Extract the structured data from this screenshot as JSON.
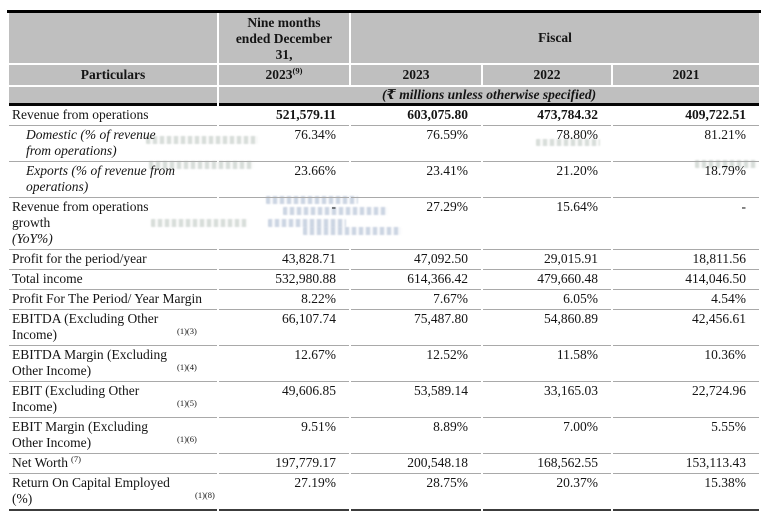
{
  "colors": {
    "header_bg": "#bfbfbf"
  },
  "table": {
    "header": {
      "particulars": "Particulars",
      "nine_months_title": "Nine months ended December 31,",
      "nine_months_year": "2023",
      "nine_months_sup": "(9)",
      "fiscal": "Fiscal",
      "years": [
        "2023",
        "2022",
        "2021"
      ],
      "units_note": "(₹ millions unless otherwise specified)"
    },
    "rows": [
      {
        "label": "Revenue from operations",
        "label_italic": "",
        "sup": "",
        "values": [
          "521,579.11",
          "603,075.80",
          "473,784.32",
          "409,722.51"
        ]
      },
      {
        "label": "Domestic (% of revenue from operations)",
        "label_italic": "",
        "sup": "",
        "values": [
          "76.34%",
          "76.59%",
          "78.80%",
          "81.21%"
        ]
      },
      {
        "label": "Exports (% of revenue from operations)",
        "label_italic": "",
        "sup": "",
        "values": [
          "23.66%",
          "23.41%",
          "21.20%",
          "18.79%"
        ]
      },
      {
        "label": "Revenue from operations growth ",
        "label_italic": "(YoY%)",
        "sup": "",
        "values": [
          "-",
          "27.29%",
          "15.64%",
          "-"
        ]
      },
      {
        "label": "Profit for the period/year",
        "label_italic": "",
        "sup": "",
        "values": [
          "43,828.71",
          "47,092.50",
          "29,015.91",
          "18,811.56"
        ]
      },
      {
        "label": "Total income",
        "label_italic": "",
        "sup": "",
        "values": [
          "532,980.88",
          "614,366.42",
          "479,660.48",
          "414,046.50"
        ]
      },
      {
        "label": "Profit For The Period/ Year Margin",
        "label_italic": "",
        "sup": "",
        "values": [
          "8.22%",
          "7.67%",
          "6.05%",
          "4.54%"
        ]
      },
      {
        "label": "EBITDA (Excluding Other Income)",
        "label_italic": "",
        "sup": "(1)(3)",
        "values": [
          "66,107.74",
          "75,487.80",
          "54,860.89",
          "42,456.61"
        ]
      },
      {
        "label": "EBITDA Margin (Excluding Other Income)",
        "label_italic": "",
        "sup": "(1)(4)",
        "values": [
          "12.67%",
          "12.52%",
          "11.58%",
          "10.36%"
        ]
      },
      {
        "label": "EBIT (Excluding Other Income)",
        "label_italic": "",
        "sup": "(1)(5)",
        "values": [
          "49,606.85",
          "53,589.14",
          "33,165.03",
          "22,724.96"
        ]
      },
      {
        "label": "EBIT Margin (Excluding Other Income)",
        "label_italic": "",
        "sup": "(1)(6)",
        "values": [
          "9.51%",
          "8.89%",
          "7.00%",
          "5.55%"
        ]
      },
      {
        "label": "Net Worth",
        "label_italic": "",
        "sup": "(7)",
        "values": [
          "197,779.17",
          "200,548.18",
          "168,562.55",
          "153,113.43"
        ]
      },
      {
        "label": "Return On Capital Employed (%)",
        "label_italic": "",
        "sup": "(1)(8)",
        "values": [
          "27.19%",
          "28.75%",
          "20.37%",
          "15.38%"
        ]
      }
    ]
  }
}
